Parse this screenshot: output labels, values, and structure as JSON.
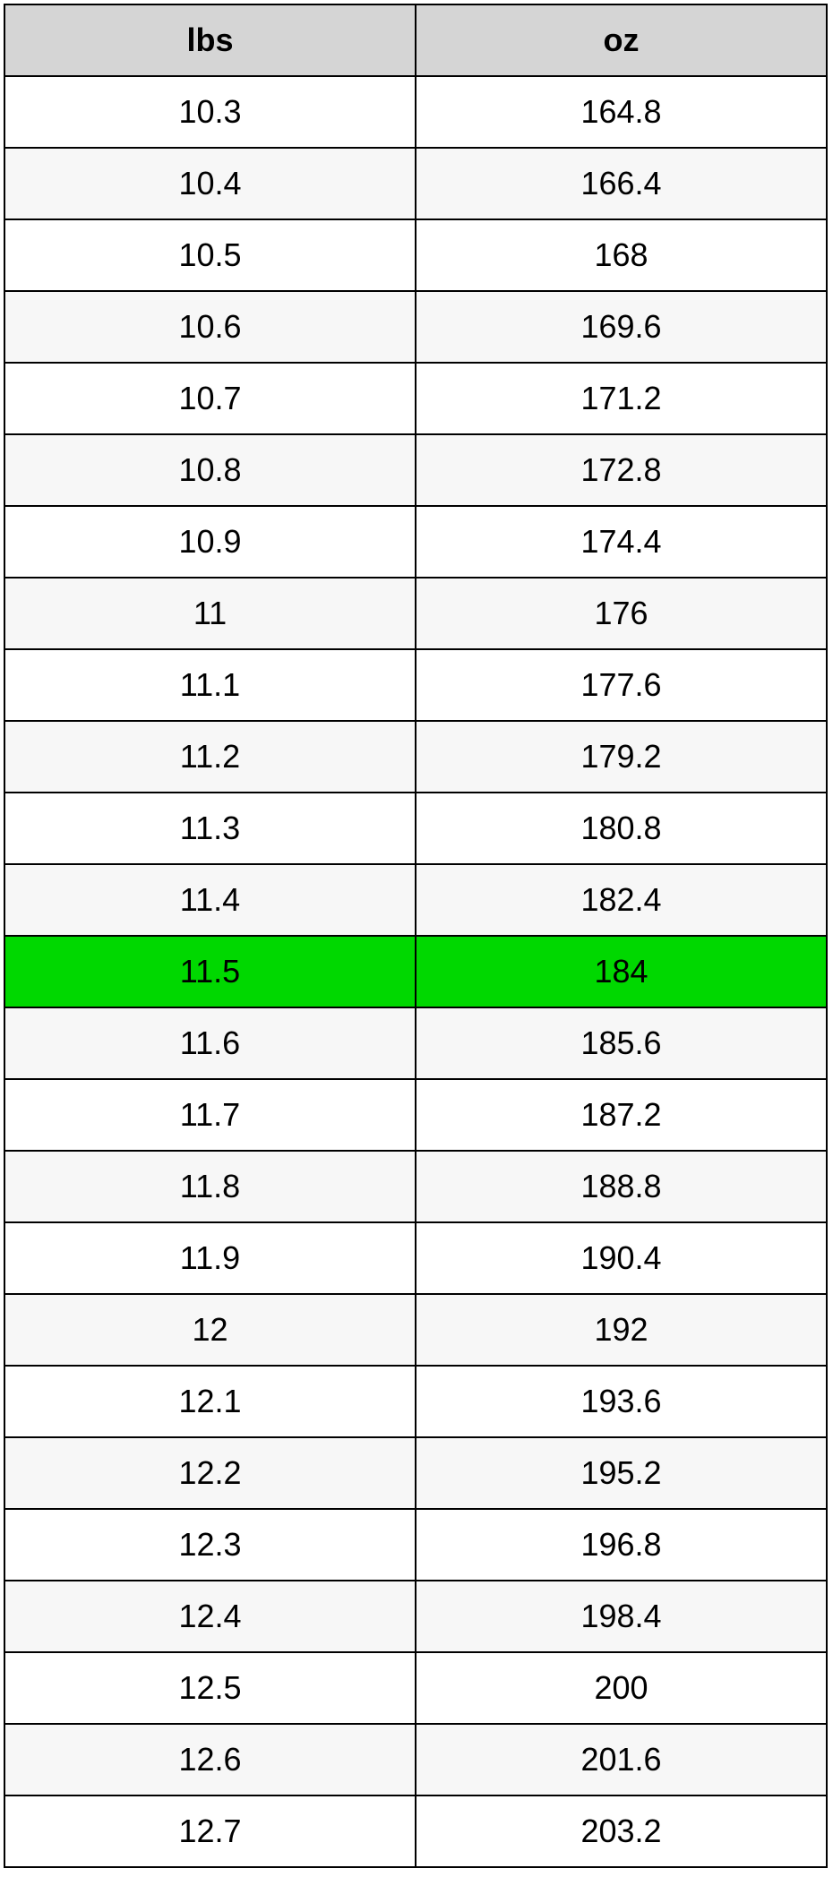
{
  "table": {
    "columns": [
      "lbs",
      "oz"
    ],
    "header_bg": "#d5d5d5",
    "border_color": "#000000",
    "font_size": 36,
    "font_family": "Arial, Helvetica, sans-serif",
    "text_color": "#000000",
    "row_even_bg": "#ffffff",
    "row_odd_bg": "#f7f7f7",
    "highlight_bg": "#00d800",
    "highlighted_row_index": 12,
    "rows": [
      {
        "lbs": "10.3",
        "oz": "164.8"
      },
      {
        "lbs": "10.4",
        "oz": "166.4"
      },
      {
        "lbs": "10.5",
        "oz": "168"
      },
      {
        "lbs": "10.6",
        "oz": "169.6"
      },
      {
        "lbs": "10.7",
        "oz": "171.2"
      },
      {
        "lbs": "10.8",
        "oz": "172.8"
      },
      {
        "lbs": "10.9",
        "oz": "174.4"
      },
      {
        "lbs": "11",
        "oz": "176"
      },
      {
        "lbs": "11.1",
        "oz": "177.6"
      },
      {
        "lbs": "11.2",
        "oz": "179.2"
      },
      {
        "lbs": "11.3",
        "oz": "180.8"
      },
      {
        "lbs": "11.4",
        "oz": "182.4"
      },
      {
        "lbs": "11.5",
        "oz": "184"
      },
      {
        "lbs": "11.6",
        "oz": "185.6"
      },
      {
        "lbs": "11.7",
        "oz": "187.2"
      },
      {
        "lbs": "11.8",
        "oz": "188.8"
      },
      {
        "lbs": "11.9",
        "oz": "190.4"
      },
      {
        "lbs": "12",
        "oz": "192"
      },
      {
        "lbs": "12.1",
        "oz": "193.6"
      },
      {
        "lbs": "12.2",
        "oz": "195.2"
      },
      {
        "lbs": "12.3",
        "oz": "196.8"
      },
      {
        "lbs": "12.4",
        "oz": "198.4"
      },
      {
        "lbs": "12.5",
        "oz": "200"
      },
      {
        "lbs": "12.6",
        "oz": "201.6"
      },
      {
        "lbs": "12.7",
        "oz": "203.2"
      }
    ]
  }
}
